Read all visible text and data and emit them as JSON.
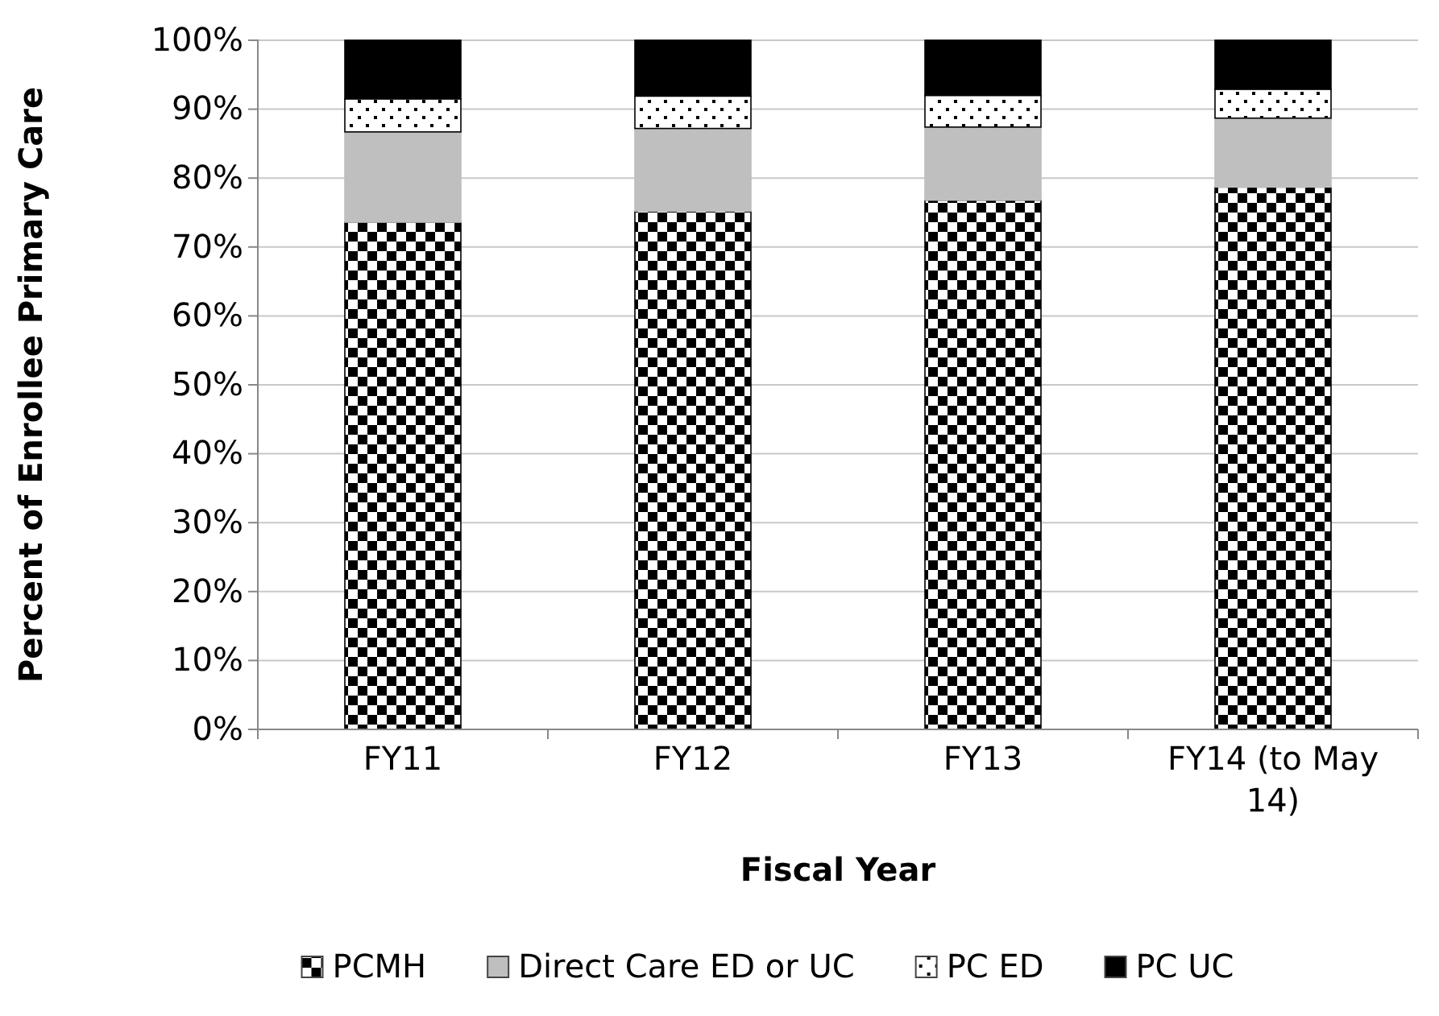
{
  "chart_data": {
    "type": "bar",
    "stacked": true,
    "xlabel": "Fiscal Year",
    "ylabel": "Percent of Enrollee Primary Care",
    "categories": [
      "FY11",
      "FY12",
      "FY13",
      "FY14 (to May 14)"
    ],
    "series": [
      {
        "name": "PCMH",
        "color": "#000000",
        "values": [
          73.6,
          75.2,
          76.8,
          78.7
        ]
      },
      {
        "name": "Direct Care ED or UC",
        "color": "#bfbfbf",
        "values": [
          13.1,
          12.0,
          10.6,
          10.0
        ]
      },
      {
        "name": "PC ED",
        "color": "#000000",
        "values": [
          4.8,
          4.7,
          4.6,
          4.2
        ]
      },
      {
        "name": "PC UC",
        "color": "#000000",
        "values": [
          8.5,
          8.1,
          8.0,
          7.1
        ]
      }
    ],
    "ylim": [
      0,
      100
    ],
    "yticks": [
      {
        "value": 0,
        "label": "0%"
      },
      {
        "value": 10,
        "label": "10%"
      },
      {
        "value": 20,
        "label": "20%"
      },
      {
        "value": 30,
        "label": "30%"
      },
      {
        "value": 40,
        "label": "40%"
      },
      {
        "value": 50,
        "label": "50%"
      },
      {
        "value": 60,
        "label": "60%"
      },
      {
        "value": 70,
        "label": "70%"
      },
      {
        "value": 80,
        "label": "80%"
      },
      {
        "value": 90,
        "label": "90%"
      },
      {
        "value": 100,
        "label": "100%"
      }
    ],
    "grid": "y",
    "legend": "bottom"
  }
}
